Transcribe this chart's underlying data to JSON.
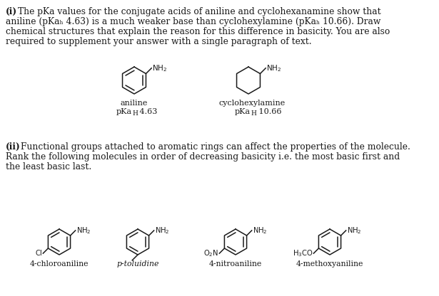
{
  "background_color": "#ffffff",
  "text_color": "#1a1a1a",
  "figsize": [
    6.15,
    4.16
  ],
  "dpi": 100,
  "mol1_label": "4-chloroaniline",
  "mol2_label": "p-toluidine",
  "mol3_label": "4-nitroaniline",
  "mol4_label": "4-methoxyaniline"
}
